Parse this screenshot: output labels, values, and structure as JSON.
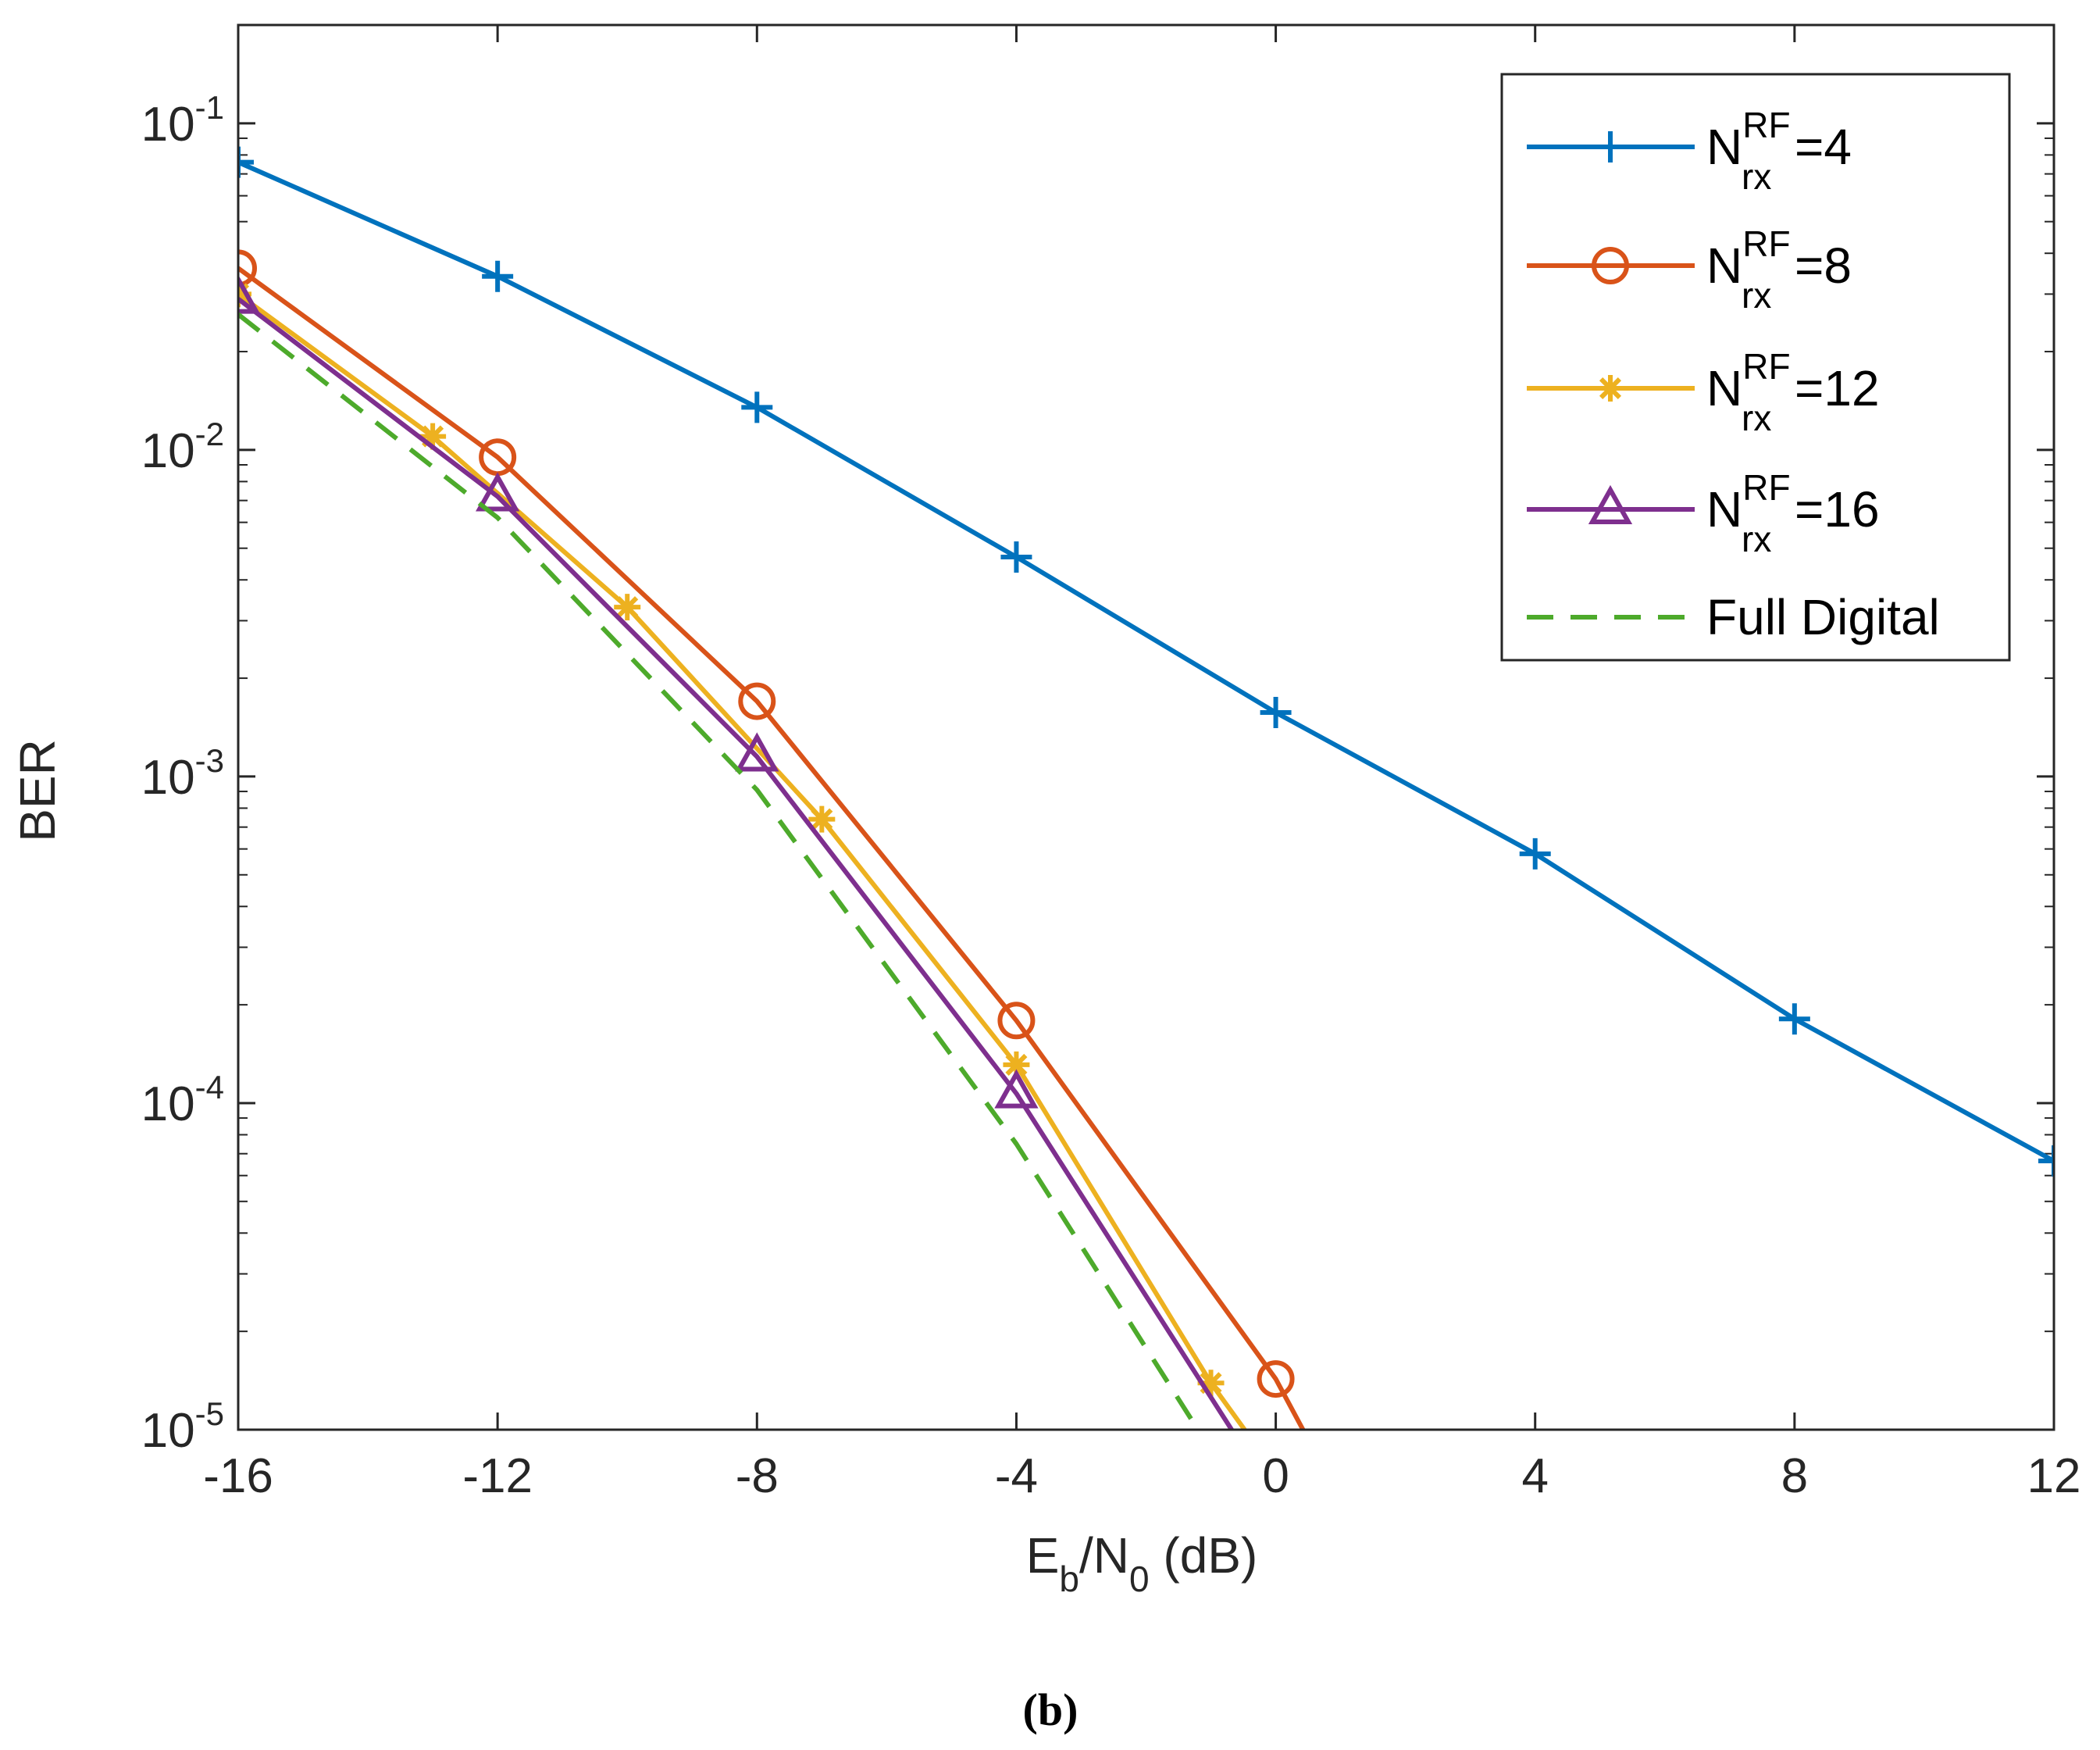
{
  "chart_data": {
    "type": "line",
    "xscale": "linear",
    "yscale": "log",
    "xlim": [
      -16,
      12
    ],
    "ylim": [
      1e-05,
      0.2
    ],
    "xticks": [
      -16,
      -12,
      -8,
      -4,
      0,
      4,
      8,
      12
    ],
    "xtick_labels": [
      "-16",
      "-12",
      "-8",
      "-4",
      "0",
      "4",
      "8",
      "12"
    ],
    "yticks": [
      0.1,
      0.01,
      0.001,
      0.0001,
      1e-05
    ],
    "ytick_labels": [
      {
        "base": "10",
        "exp": "-1"
      },
      {
        "base": "10",
        "exp": "-2"
      },
      {
        "base": "10",
        "exp": "-3"
      },
      {
        "base": "10",
        "exp": "-4"
      },
      {
        "base": "10",
        "exp": "-5"
      }
    ],
    "ylabel": "BER",
    "xlabel": {
      "main1": "E",
      "sub1": "b",
      "main2": "/N",
      "sub2": "0",
      "tail": " (dB)"
    },
    "caption": "(b)",
    "legend_position": "top-right",
    "series": [
      {
        "name": "N_rx^RF=4",
        "label": {
          "base": "N",
          "sub": "rx",
          "sup": "RF",
          "tail": "=4"
        },
        "color": "#0072BD",
        "marker": "plus",
        "dash": "solid",
        "x": [
          -16,
          -12,
          -8,
          -4,
          0,
          4,
          8,
          12
        ],
        "y": [
          0.076,
          0.034,
          0.0135,
          0.0047,
          0.00157,
          0.00058,
          0.000181,
          6.65e-05
        ]
      },
      {
        "name": "N_rx^RF=8",
        "label": {
          "base": "N",
          "sub": "rx",
          "sup": "RF",
          "tail": "=8"
        },
        "color": "#D95319",
        "marker": "circle",
        "dash": "solid",
        "x": [
          -16,
          -12,
          -8,
          -4,
          0,
          0.42
        ],
        "y": [
          0.036,
          0.0095,
          0.0017,
          0.000179,
          1.43e-05,
          1e-05
        ]
      },
      {
        "name": "N_rx^RF=12",
        "label": {
          "base": "N",
          "sub": "rx",
          "sup": "RF",
          "tail": "=12"
        },
        "color": "#EDB120",
        "marker": "asterisk",
        "dash": "solid",
        "x": [
          -16,
          -13,
          -10,
          -7,
          -4,
          -1,
          -0.48
        ],
        "y": [
          0.03,
          0.011,
          0.0033,
          0.00074,
          0.000131,
          1.39e-05,
          1e-05
        ]
      },
      {
        "name": "N_rx^RF=16",
        "label": {
          "base": "N",
          "sub": "rx",
          "sup": "RF",
          "tail": "=16"
        },
        "color": "#7E2F8E",
        "marker": "triangle",
        "dash": "solid",
        "x": [
          -16,
          -12,
          -8,
          -4,
          -0.68
        ],
        "y": [
          0.029,
          0.0072,
          0.00115,
          0.000107,
          1e-05
        ]
      },
      {
        "name": "Full Digital",
        "label": {
          "base": "Full Digital",
          "sub": "",
          "sup": "",
          "tail": ""
        },
        "color": "#4DAA2B",
        "marker": "none",
        "dash": "dashed",
        "x": [
          -16,
          -12,
          -8,
          -4,
          -1.2
        ],
        "y": [
          0.026,
          0.0062,
          0.00091,
          7.5e-05,
          1e-05
        ]
      }
    ]
  }
}
